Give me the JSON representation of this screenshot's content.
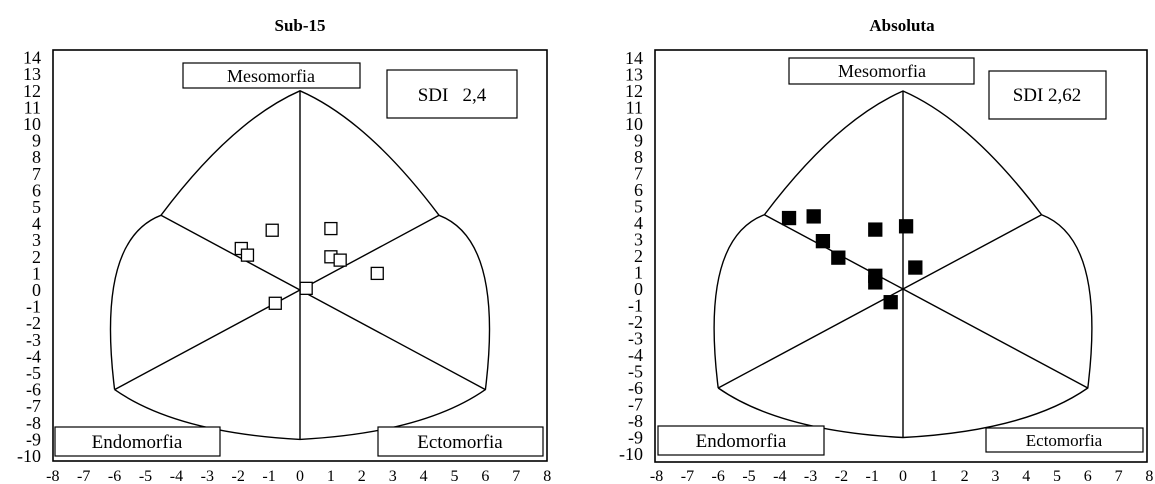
{
  "chart_data": [
    {
      "type": "scatter",
      "title": "Sub-15",
      "xlim": [
        -8,
        8
      ],
      "ylim": [
        -10,
        14
      ],
      "x_ticks": [
        -8,
        -7,
        -6,
        -5,
        -4,
        -3,
        -2,
        -1,
        0,
        1,
        2,
        3,
        4,
        5,
        6,
        7,
        8
      ],
      "y_ticks": [
        14,
        13,
        12,
        11,
        10,
        9,
        8,
        7,
        6,
        5,
        4,
        3,
        2,
        1,
        0,
        -1,
        -2,
        -3,
        -4,
        -5,
        -6,
        -7,
        -8,
        -9,
        -10
      ],
      "labels": {
        "top": "Mesomorfia",
        "left": "Endomorfia",
        "right": "Ectomorfia"
      },
      "annotation": "SDI   2,4",
      "marker": "open-square",
      "color": "#000000",
      "points": [
        {
          "x": -0.9,
          "y": 3.6
        },
        {
          "x": -1.9,
          "y": 2.5
        },
        {
          "x": -1.7,
          "y": 2.1
        },
        {
          "x": 1.0,
          "y": 3.7
        },
        {
          "x": 1.0,
          "y": 2.0
        },
        {
          "x": 1.3,
          "y": 1.8
        },
        {
          "x": 2.5,
          "y": 1.0
        },
        {
          "x": 0.2,
          "y": 0.1
        },
        {
          "x": -0.8,
          "y": -0.8
        }
      ]
    },
    {
      "type": "scatter",
      "title": "Absoluta",
      "xlim": [
        -8,
        8
      ],
      "ylim": [
        -10,
        14
      ],
      "x_ticks": [
        -8,
        -7,
        -6,
        -5,
        -4,
        -3,
        -2,
        -1,
        0,
        1,
        2,
        3,
        4,
        5,
        6,
        7,
        8
      ],
      "y_ticks": [
        14,
        13,
        12,
        11,
        10,
        9,
        8,
        7,
        6,
        5,
        4,
        3,
        2,
        1,
        0,
        -1,
        -2,
        -3,
        -4,
        -5,
        -6,
        -7,
        -8,
        -9,
        -10
      ],
      "labels": {
        "top": "Mesomorfia",
        "left": "Endomorfia",
        "right": "Ectomorfia"
      },
      "annotation": "SDI 2,62",
      "marker": "filled-square",
      "color": "#000000",
      "points": [
        {
          "x": -3.7,
          "y": 4.3
        },
        {
          "x": -2.9,
          "y": 4.4
        },
        {
          "x": -2.6,
          "y": 2.9
        },
        {
          "x": -2.1,
          "y": 1.9
        },
        {
          "x": -0.9,
          "y": 3.6
        },
        {
          "x": 0.1,
          "y": 3.8
        },
        {
          "x": -0.9,
          "y": 0.8
        },
        {
          "x": -0.9,
          "y": 0.4
        },
        {
          "x": 0.4,
          "y": 1.3
        },
        {
          "x": -0.4,
          "y": -0.8
        }
      ]
    }
  ]
}
